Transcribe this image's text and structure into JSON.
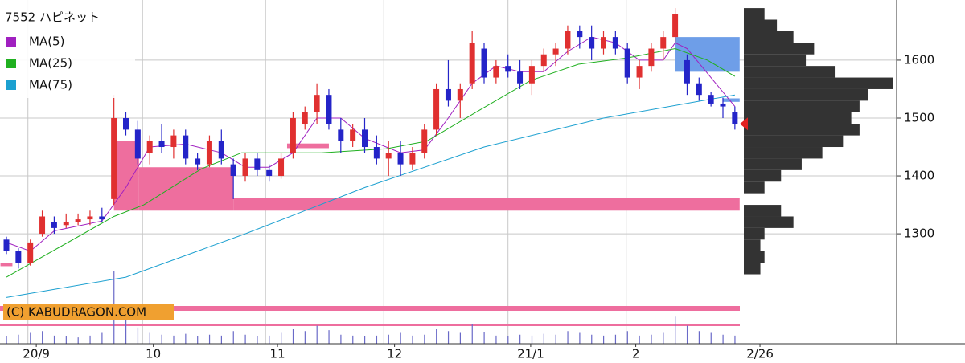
{
  "chart_data": {
    "type": "candlestick",
    "title": "7552 ハピネット",
    "up_color": "#e03030",
    "down_color": "#2424c8",
    "candles": [
      [
        1290,
        1295,
        1265,
        1270
      ],
      [
        1270,
        1275,
        1240,
        1250
      ],
      [
        1250,
        1290,
        1245,
        1285
      ],
      [
        1300,
        1340,
        1295,
        1330
      ],
      [
        1320,
        1330,
        1300,
        1310
      ],
      [
        1315,
        1335,
        1310,
        1320
      ],
      [
        1320,
        1335,
        1315,
        1325
      ],
      [
        1325,
        1340,
        1315,
        1330
      ],
      [
        1330,
        1345,
        1320,
        1325
      ],
      [
        1360,
        1540,
        1350,
        1500
      ],
      [
        1500,
        1510,
        1470,
        1480
      ],
      [
        1480,
        1495,
        1420,
        1430
      ],
      [
        1440,
        1470,
        1420,
        1460
      ],
      [
        1460,
        1490,
        1440,
        1450
      ],
      [
        1450,
        1480,
        1430,
        1470
      ],
      [
        1470,
        1480,
        1420,
        1430
      ],
      [
        1430,
        1440,
        1410,
        1420
      ],
      [
        1420,
        1470,
        1415,
        1460
      ],
      [
        1460,
        1480,
        1420,
        1430
      ],
      [
        1420,
        1430,
        1360,
        1400
      ],
      [
        1400,
        1440,
        1390,
        1430
      ],
      [
        1430,
        1440,
        1400,
        1410
      ],
      [
        1410,
        1420,
        1390,
        1400
      ],
      [
        1400,
        1440,
        1395,
        1430
      ],
      [
        1440,
        1510,
        1430,
        1500
      ],
      [
        1490,
        1520,
        1480,
        1510
      ],
      [
        1510,
        1560,
        1490,
        1540
      ],
      [
        1540,
        1550,
        1480,
        1490
      ],
      [
        1480,
        1500,
        1440,
        1460
      ],
      [
        1460,
        1490,
        1450,
        1480
      ],
      [
        1480,
        1500,
        1440,
        1450
      ],
      [
        1450,
        1470,
        1420,
        1430
      ],
      [
        1430,
        1460,
        1400,
        1440
      ],
      [
        1440,
        1460,
        1400,
        1420
      ],
      [
        1420,
        1450,
        1410,
        1440
      ],
      [
        1440,
        1490,
        1430,
        1480
      ],
      [
        1480,
        1560,
        1470,
        1550
      ],
      [
        1550,
        1600,
        1520,
        1530
      ],
      [
        1530,
        1560,
        1500,
        1550
      ],
      [
        1560,
        1650,
        1550,
        1630
      ],
      [
        1620,
        1630,
        1560,
        1570
      ],
      [
        1570,
        1600,
        1560,
        1590
      ],
      [
        1590,
        1610,
        1570,
        1580
      ],
      [
        1580,
        1600,
        1550,
        1560
      ],
      [
        1560,
        1600,
        1540,
        1590
      ],
      [
        1590,
        1620,
        1580,
        1610
      ],
      [
        1610,
        1630,
        1590,
        1620
      ],
      [
        1620,
        1660,
        1610,
        1650
      ],
      [
        1650,
        1660,
        1620,
        1640
      ],
      [
        1640,
        1660,
        1600,
        1620
      ],
      [
        1620,
        1650,
        1610,
        1640
      ],
      [
        1640,
        1650,
        1610,
        1620
      ],
      [
        1620,
        1630,
        1560,
        1570
      ],
      [
        1570,
        1600,
        1550,
        1590
      ],
      [
        1590,
        1630,
        1580,
        1620
      ],
      [
        1620,
        1650,
        1600,
        1640
      ],
      [
        1640,
        1690,
        1630,
        1680
      ],
      [
        1600,
        1610,
        1540,
        1560
      ],
      [
        1560,
        1570,
        1530,
        1540
      ],
      [
        1540,
        1545,
        1520,
        1525
      ],
      [
        1525,
        1535,
        1500,
        1520
      ],
      [
        1510,
        1520,
        1480,
        1490
      ]
    ],
    "volume": [
      8,
      10,
      12,
      14,
      9,
      8,
      7,
      9,
      12,
      80,
      30,
      18,
      12,
      10,
      9,
      11,
      8,
      10,
      9,
      14,
      10,
      8,
      9,
      12,
      16,
      14,
      20,
      15,
      10,
      9,
      8,
      9,
      10,
      12,
      9,
      10,
      16,
      14,
      12,
      22,
      13,
      9,
      8,
      10,
      9,
      11,
      10,
      14,
      12,
      10,
      9,
      10,
      14,
      9,
      10,
      12,
      30,
      20,
      14,
      12,
      10,
      9
    ],
    "ma_lines": [
      {
        "name": "MA(5)",
        "color": "#a020c0",
        "x": [
          0,
          2,
          4,
          8,
          10,
          12,
          15,
          18,
          20,
          22,
          24,
          26,
          28,
          30,
          33,
          35,
          37,
          39,
          41,
          43,
          45,
          47,
          49,
          51,
          53,
          55,
          56,
          57,
          59,
          61
        ],
        "values": [
          1285,
          1270,
          1305,
          1322,
          1380,
          1450,
          1455,
          1440,
          1415,
          1415,
          1440,
          1500,
          1500,
          1465,
          1440,
          1445,
          1500,
          1560,
          1590,
          1580,
          1580,
          1615,
          1640,
          1630,
          1600,
          1600,
          1630,
          1620,
          1570,
          1520
        ]
      },
      {
        "name": "MA(25)",
        "color": "#20b020",
        "x": [
          0,
          9,
          11.5,
          16.3,
          19.7,
          26.4,
          31.8,
          35.2,
          39.9,
          43.9,
          47.9,
          52,
          56,
          58.7,
          61
        ],
        "values": [
          1225,
          1330,
          1350,
          1412,
          1440,
          1440,
          1447,
          1460,
          1517,
          1565,
          1593,
          1604,
          1620,
          1600,
          1572
        ]
      },
      {
        "name": "MA(75)",
        "color": "#1ca0d0",
        "x": [
          0,
          10,
          20,
          30,
          40,
          50,
          61
        ],
        "values": [
          1190,
          1225,
          1300,
          1380,
          1450,
          1500,
          1540
        ]
      }
    ],
    "zones": [
      {
        "from": 9,
        "to": 11.1,
        "low": 1340,
        "high": 1460,
        "color": "#ee6e9e"
      },
      {
        "from": 11.1,
        "to": 19,
        "low": 1340,
        "high": 1415,
        "color": "#ee6e9e"
      },
      {
        "from": 19,
        "to": 61.4,
        "low": 1340,
        "high": 1362,
        "color": "#ee6e9e"
      },
      {
        "from": 23.5,
        "to": 27,
        "low": 1448,
        "high": 1456,
        "color": "#ee6e9e"
      },
      {
        "from": -0.5,
        "to": 0.5,
        "low": 1244,
        "high": 1250,
        "color": "#ee6e9e"
      },
      {
        "from": 56,
        "to": 61.4,
        "low": 1580,
        "high": 1640,
        "color": "#6e9ee8"
      },
      {
        "from": 60,
        "to": 61.4,
        "low": 1528,
        "high": 1534,
        "color": "#6e9ee8"
      }
    ],
    "profile_bins": [
      1230,
      1250,
      1270,
      1290,
      1310,
      1330,
      1350,
      1370,
      1390,
      1410,
      1430,
      1450,
      1470,
      1490,
      1510,
      1530,
      1550,
      1570,
      1590,
      1610,
      1630,
      1650,
      1670,
      1690
    ],
    "profile_counts": [
      20,
      25,
      20,
      25,
      60,
      45,
      0,
      25,
      45,
      70,
      95,
      120,
      140,
      130,
      140,
      150,
      180,
      110,
      75,
      85,
      60,
      40,
      25
    ],
    "last_price": 1490,
    "ylim": [
      1110,
      1704
    ],
    "yticks": [
      1300,
      1400,
      1500,
      1600
    ],
    "xgrid": [
      1.8,
      11.4,
      21.7,
      31.6,
      42,
      51.9
    ],
    "xticks": [
      {
        "value": 2.5,
        "label": "20/9"
      },
      {
        "value": 12.3,
        "label": "10"
      },
      {
        "value": 22.7,
        "label": "11"
      },
      {
        "value": 32.5,
        "label": "12"
      },
      {
        "value": 43.9,
        "label": "21/1"
      },
      {
        "value": 52.7,
        "label": "2"
      },
      {
        "value": 63.1,
        "label": "2/26"
      }
    ],
    "copyright": "(C) KABUDRAGON.COM"
  }
}
